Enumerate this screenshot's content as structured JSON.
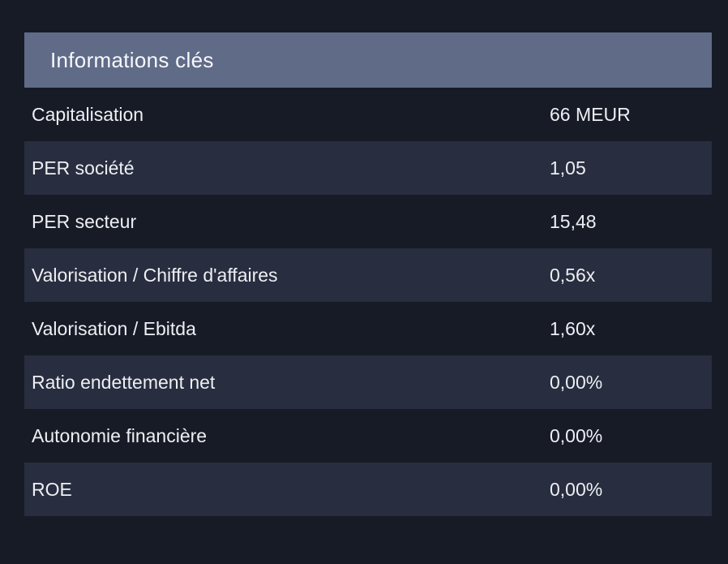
{
  "panel": {
    "title": "Informations clés",
    "rows": [
      {
        "label": "Capitalisation",
        "value": "66 MEUR"
      },
      {
        "label": "PER société",
        "value": "1,05"
      },
      {
        "label": "PER secteur",
        "value": "15,48"
      },
      {
        "label": "Valorisation / Chiffre d'affaires",
        "value": "0,56x"
      },
      {
        "label": "Valorisation / Ebitda",
        "value": "1,60x"
      },
      {
        "label": "Ratio endettement net",
        "value": "0,00%"
      },
      {
        "label": "Autonomie financière",
        "value": "0,00%"
      },
      {
        "label": "ROE",
        "value": "0,00%"
      }
    ],
    "colors": {
      "page_background": "#171b26",
      "row_highlight": "#282d3f",
      "header_background": "#5f6b87",
      "text": "#edeff3"
    }
  }
}
